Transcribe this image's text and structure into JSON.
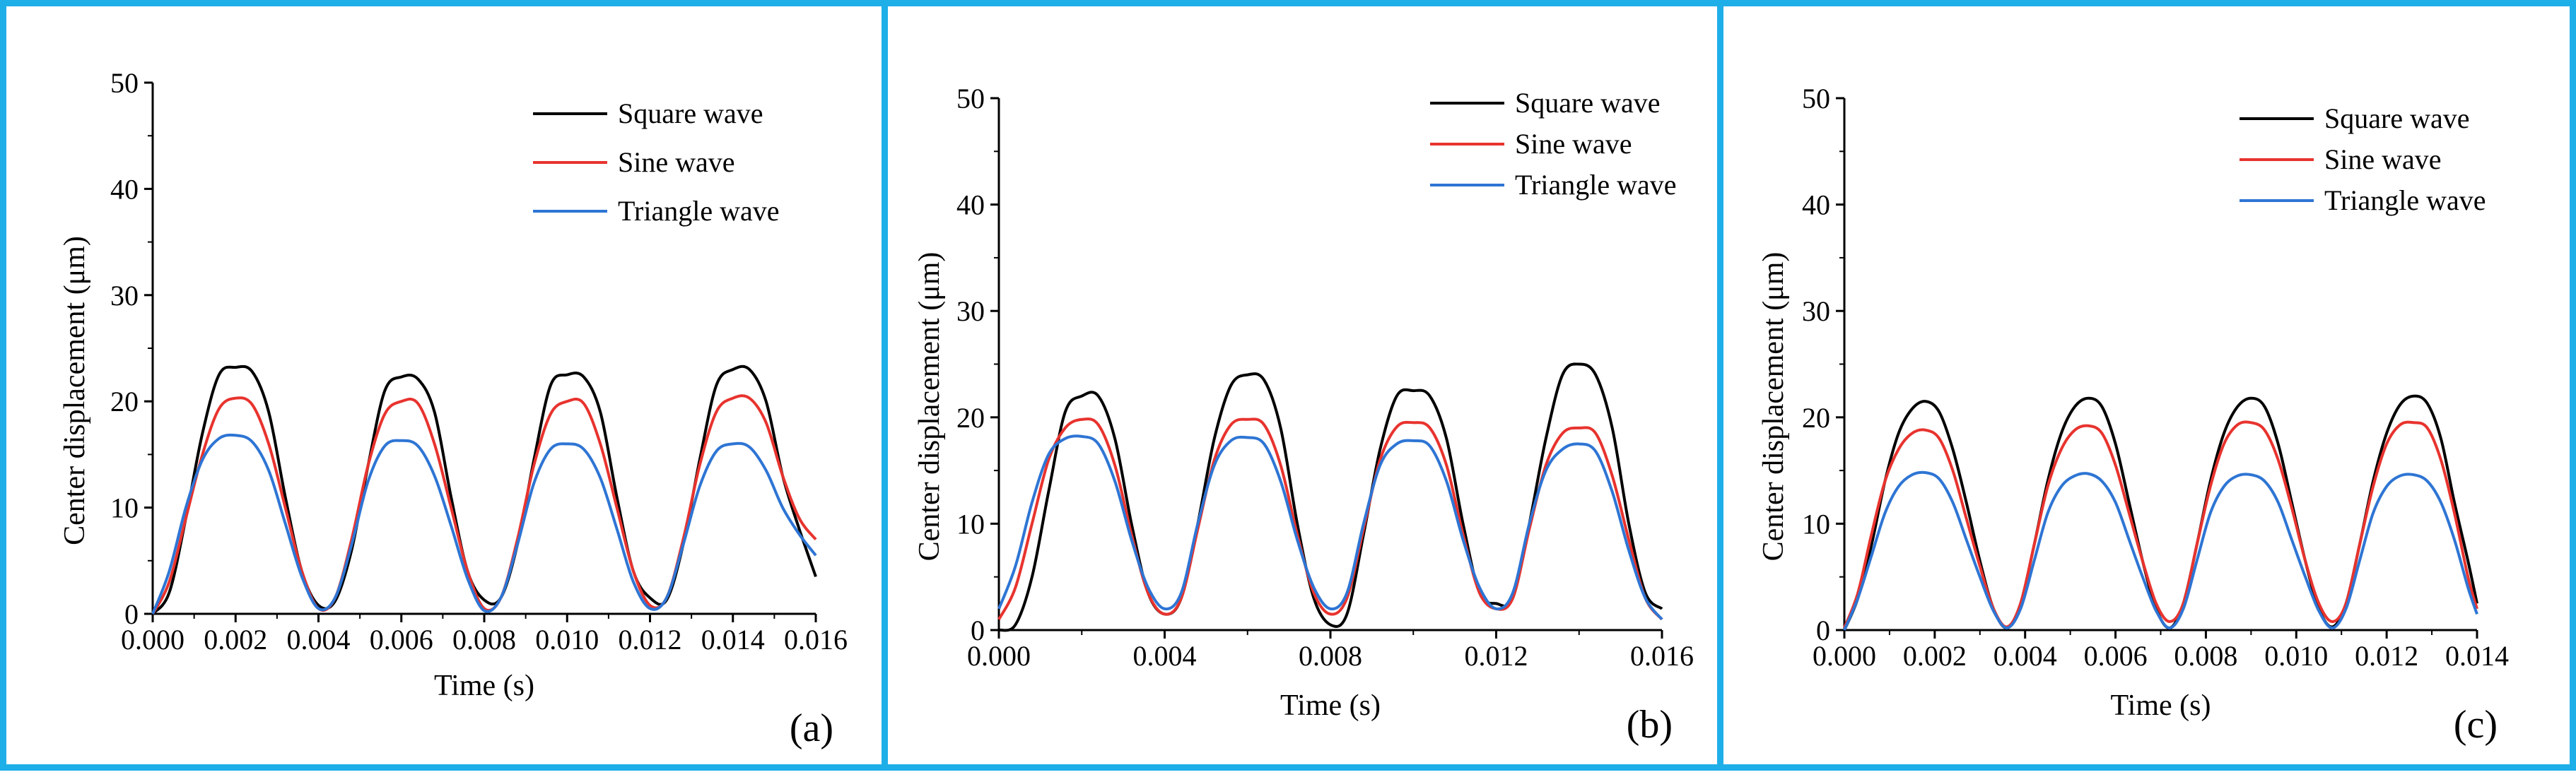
{
  "chart_data": [
    {
      "type": "line",
      "panel_label": "(a)",
      "xlabel": "Time (s)",
      "ylabel": "Center displacement (μm)",
      "xlim": [
        0,
        0.016
      ],
      "ylim": [
        0,
        50
      ],
      "xticks": [
        "0.000",
        "0.002",
        "0.004",
        "0.006",
        "0.008",
        "0.010",
        "0.012",
        "0.014",
        "0.016"
      ],
      "yticks": [
        "0",
        "10",
        "20",
        "30",
        "40",
        "50"
      ],
      "legend_position": "top-right",
      "series": [
        {
          "name": "Square wave",
          "color": "#000000",
          "x": [
            0,
            0.0004,
            0.0008,
            0.0012,
            0.0016,
            0.002,
            0.0024,
            0.0028,
            0.0032,
            0.0036,
            0.004,
            0.0044,
            0.0048,
            0.0052,
            0.0056,
            0.006,
            0.0064,
            0.0068,
            0.0072,
            0.0076,
            0.008,
            0.0084,
            0.0088,
            0.0092,
            0.0096,
            0.01,
            0.0104,
            0.0108,
            0.0112,
            0.0116,
            0.012,
            0.0124,
            0.0128,
            0.0132,
            0.0136,
            0.014,
            0.0144,
            0.0148,
            0.0152,
            0.0156,
            0.016
          ],
          "y": [
            0,
            2,
            9,
            17,
            22.5,
            23.2,
            22.8,
            19,
            11,
            4,
            0.8,
            1.2,
            6,
            14,
            21,
            22.3,
            22.1,
            19,
            11,
            4,
            1.3,
            1.5,
            6.5,
            14.5,
            21.5,
            22.5,
            22.3,
            19,
            11,
            4,
            1.5,
            1.3,
            6.5,
            14.5,
            21.5,
            23,
            23,
            20,
            13,
            8,
            3.5
          ]
        },
        {
          "name": "Sine wave",
          "color": "#e8332e",
          "x": [
            0,
            0.0004,
            0.0008,
            0.0012,
            0.0016,
            0.002,
            0.0024,
            0.0028,
            0.0032,
            0.0036,
            0.004,
            0.0044,
            0.0048,
            0.0052,
            0.0056,
            0.006,
            0.0064,
            0.0068,
            0.0072,
            0.0076,
            0.008,
            0.0084,
            0.0088,
            0.0092,
            0.0096,
            0.01,
            0.0104,
            0.0108,
            0.0112,
            0.0116,
            0.012,
            0.0124,
            0.0128,
            0.0132,
            0.0136,
            0.014,
            0.0144,
            0.0148,
            0.0152,
            0.0156,
            0.016
          ],
          "y": [
            0,
            3,
            9,
            15,
            19.3,
            20.3,
            19.7,
            16,
            10,
            4,
            0.5,
            1.5,
            7,
            14,
            18.8,
            20,
            19.8,
            16,
            10,
            4,
            0.5,
            1.5,
            7,
            14,
            18.8,
            20,
            19.8,
            16,
            10,
            4,
            0.8,
            1.5,
            7,
            14,
            19,
            20.3,
            20.3,
            18,
            13,
            9,
            7
          ]
        },
        {
          "name": "Triangle wave",
          "color": "#2e75d4",
          "x": [
            0,
            0.0004,
            0.0008,
            0.0012,
            0.0016,
            0.002,
            0.0024,
            0.0028,
            0.0032,
            0.0036,
            0.004,
            0.0044,
            0.0048,
            0.0052,
            0.0056,
            0.006,
            0.0064,
            0.0068,
            0.0072,
            0.0076,
            0.008,
            0.0084,
            0.0088,
            0.0092,
            0.0096,
            0.01,
            0.0104,
            0.0108,
            0.0112,
            0.0116,
            0.012,
            0.0124,
            0.0128,
            0.0132,
            0.0136,
            0.014,
            0.0144,
            0.0148,
            0.0152,
            0.0156,
            0.016
          ],
          "y": [
            0,
            4,
            10,
            14.5,
            16.5,
            16.8,
            16.2,
            13.5,
            8.5,
            3.5,
            0.5,
            1.5,
            6.5,
            12.5,
            15.8,
            16.3,
            15.8,
            13,
            8.3,
            3.3,
            0.3,
            1.5,
            6.5,
            12.3,
            15.5,
            16,
            15.5,
            12.8,
            8,
            3,
            0.5,
            1.5,
            6.5,
            12,
            15.3,
            16,
            15.7,
            13.5,
            10,
            7.5,
            5.5
          ]
        }
      ]
    },
    {
      "type": "line",
      "panel_label": "(b)",
      "xlabel": "Time (s)",
      "ylabel": "Center displacement (μm)",
      "xlim": [
        0,
        0.016
      ],
      "ylim": [
        0,
        50
      ],
      "xticks": [
        "0.000",
        "0.004",
        "0.008",
        "0.012",
        "0.016"
      ],
      "yticks": [
        "0",
        "10",
        "20",
        "30",
        "40",
        "50"
      ],
      "legend_position": "top-right",
      "series": [
        {
          "name": "Square wave",
          "color": "#000000",
          "x": [
            0,
            0.0004,
            0.0008,
            0.0012,
            0.0016,
            0.002,
            0.0024,
            0.0028,
            0.0032,
            0.0036,
            0.004,
            0.0044,
            0.0048,
            0.0052,
            0.0056,
            0.006,
            0.0064,
            0.0068,
            0.0072,
            0.0076,
            0.008,
            0.0084,
            0.0088,
            0.0092,
            0.0096,
            0.01,
            0.0104,
            0.0108,
            0.0112,
            0.0116,
            0.012,
            0.0124,
            0.0128,
            0.0132,
            0.0136,
            0.014,
            0.0144,
            0.0148,
            0.0152,
            0.0156,
            0.016
          ],
          "y": [
            0,
            0.5,
            5,
            13,
            20.5,
            22,
            22,
            18,
            10,
            3.5,
            1.5,
            3,
            10,
            18,
            23,
            24,
            23.5,
            19,
            10,
            3,
            0.5,
            1.5,
            9,
            17,
            22,
            22.5,
            22,
            18,
            10,
            3.5,
            2.5,
            3,
            10,
            18,
            24,
            25,
            24,
            19,
            10,
            3.5,
            2
          ]
        },
        {
          "name": "Sine wave",
          "color": "#e8332e",
          "x": [
            0,
            0.0004,
            0.0008,
            0.0012,
            0.0016,
            0.002,
            0.0024,
            0.0028,
            0.0032,
            0.0036,
            0.004,
            0.0044,
            0.0048,
            0.0052,
            0.0056,
            0.006,
            0.0064,
            0.0068,
            0.0072,
            0.0076,
            0.008,
            0.0084,
            0.0088,
            0.0092,
            0.0096,
            0.01,
            0.0104,
            0.0108,
            0.0112,
            0.0116,
            0.012,
            0.0124,
            0.0128,
            0.0132,
            0.0136,
            0.014,
            0.0144,
            0.0148,
            0.0152,
            0.0156,
            0.016
          ],
          "y": [
            1,
            4,
            10,
            16,
            19,
            19.8,
            19.3,
            15.5,
            9,
            3.5,
            1.5,
            3,
            9.5,
            16,
            19.3,
            19.8,
            19.3,
            15.5,
            9,
            3.5,
            1.5,
            3,
            9.5,
            16,
            19.1,
            19.5,
            19,
            15.5,
            9,
            3.5,
            2,
            3,
            9.5,
            15.5,
            18.5,
            19,
            18.5,
            14.5,
            8.5,
            3,
            1
          ]
        },
        {
          "name": "Triangle wave",
          "color": "#2e75d4",
          "x": [
            0,
            0.0004,
            0.0008,
            0.0012,
            0.0016,
            0.002,
            0.0024,
            0.0028,
            0.0032,
            0.0036,
            0.004,
            0.0044,
            0.0048,
            0.0052,
            0.0056,
            0.006,
            0.0064,
            0.0068,
            0.0072,
            0.0076,
            0.008,
            0.0084,
            0.0088,
            0.0092,
            0.0096,
            0.01,
            0.0104,
            0.0108,
            0.0112,
            0.0116,
            0.012,
            0.0124,
            0.0128,
            0.0132,
            0.0136,
            0.014,
            0.0144,
            0.0148,
            0.0152,
            0.0156,
            0.016
          ],
          "y": [
            2,
            6,
            12,
            16.5,
            18,
            18.2,
            17.5,
            14,
            8.5,
            4,
            2,
            3.5,
            10,
            15.5,
            17.8,
            18.1,
            17.5,
            14,
            8.5,
            4,
            2,
            3.5,
            10,
            15.5,
            17.5,
            17.8,
            17.3,
            14,
            8.5,
            4,
            2,
            3.5,
            10,
            15,
            17,
            17.5,
            16.8,
            13,
            7.5,
            3,
            1
          ]
        }
      ]
    },
    {
      "type": "line",
      "panel_label": "(c)",
      "xlabel": "Time (s)",
      "ylabel": "Center displacement (μm)",
      "xlim": [
        0,
        0.014
      ],
      "ylim": [
        0,
        50
      ],
      "xticks": [
        "0.000",
        "0.002",
        "0.004",
        "0.006",
        "0.008",
        "0.010",
        "0.012",
        "0.014"
      ],
      "yticks": [
        "0",
        "10",
        "20",
        "30",
        "40",
        "50"
      ],
      "legend_position": "top-right",
      "series": [
        {
          "name": "Square wave",
          "color": "#000000",
          "x": [
            0,
            0.0003,
            0.0006,
            0.0009,
            0.0012,
            0.0015,
            0.0018,
            0.0021,
            0.0024,
            0.0027,
            0.003,
            0.0033,
            0.0036,
            0.0039,
            0.0042,
            0.0045,
            0.0048,
            0.0051,
            0.0054,
            0.0057,
            0.006,
            0.0063,
            0.0066,
            0.0069,
            0.0072,
            0.0075,
            0.0078,
            0.0081,
            0.0084,
            0.0087,
            0.009,
            0.0093,
            0.0096,
            0.0099,
            0.0102,
            0.0105,
            0.0108,
            0.0111,
            0.0114,
            0.0117,
            0.012,
            0.0123,
            0.0126,
            0.0129,
            0.0132,
            0.0135,
            0.0138,
            0.014
          ],
          "y": [
            0,
            3,
            8,
            14,
            18.5,
            20.8,
            21.5,
            20.5,
            17,
            12,
            6.5,
            2,
            0.2,
            2.5,
            8,
            14,
            18.5,
            21,
            21.8,
            21,
            17.5,
            12,
            6.5,
            2,
            0.2,
            2.5,
            8,
            14,
            18.5,
            21,
            21.8,
            21,
            17.5,
            12,
            6.5,
            2,
            0.3,
            2.5,
            8,
            14,
            18.5,
            21.2,
            22,
            21.3,
            18,
            12,
            6.5,
            2.5
          ]
        },
        {
          "name": "Sine wave",
          "color": "#e8332e",
          "x": [
            0,
            0.0003,
            0.0006,
            0.0009,
            0.0012,
            0.0015,
            0.0018,
            0.0021,
            0.0024,
            0.0027,
            0.003,
            0.0033,
            0.0036,
            0.0039,
            0.0042,
            0.0045,
            0.0048,
            0.0051,
            0.0054,
            0.0057,
            0.006,
            0.0063,
            0.0066,
            0.0069,
            0.0072,
            0.0075,
            0.0078,
            0.0081,
            0.0084,
            0.0087,
            0.009,
            0.0093,
            0.0096,
            0.0099,
            0.0102,
            0.0105,
            0.0108,
            0.0111,
            0.0114,
            0.0117,
            0.012,
            0.0123,
            0.0126,
            0.0129,
            0.0132,
            0.0135,
            0.0138,
            0.014
          ],
          "y": [
            0.2,
            3.5,
            9,
            14,
            17,
            18.5,
            18.8,
            18,
            15,
            10.5,
            6,
            2,
            0.3,
            2.5,
            8,
            13.5,
            17,
            18.8,
            19.2,
            18.5,
            15.5,
            11,
            6.5,
            2.5,
            0.8,
            2.5,
            8,
            13.5,
            17.5,
            19.3,
            19.5,
            18.8,
            16,
            11.5,
            6.5,
            2.5,
            0.8,
            2.5,
            8,
            13.5,
            17.5,
            19.3,
            19.5,
            19,
            16,
            11,
            5,
            2
          ]
        },
        {
          "name": "Triangle wave",
          "color": "#2e75d4",
          "x": [
            0,
            0.0003,
            0.0006,
            0.0009,
            0.0012,
            0.0015,
            0.0018,
            0.0021,
            0.0024,
            0.0027,
            0.003,
            0.0033,
            0.0036,
            0.0039,
            0.0042,
            0.0045,
            0.0048,
            0.0051,
            0.0054,
            0.0057,
            0.006,
            0.0063,
            0.0066,
            0.0069,
            0.0072,
            0.0075,
            0.0078,
            0.0081,
            0.0084,
            0.0087,
            0.009,
            0.0093,
            0.0096,
            0.0099,
            0.0102,
            0.0105,
            0.0108,
            0.0111,
            0.0114,
            0.0117,
            0.012,
            0.0123,
            0.0126,
            0.0129,
            0.0132,
            0.0135,
            0.0138,
            0.014
          ],
          "y": [
            0,
            3,
            7,
            11,
            13.5,
            14.6,
            14.8,
            14.2,
            12,
            8.5,
            5,
            1.8,
            0.2,
            2,
            6.5,
            11,
            13.5,
            14.5,
            14.7,
            14,
            12,
            8.5,
            5,
            1.8,
            0.2,
            2,
            6.5,
            11,
            13.5,
            14.5,
            14.6,
            14,
            12,
            8.5,
            5,
            1.8,
            0.2,
            2,
            6.5,
            11,
            13.5,
            14.5,
            14.6,
            14,
            12,
            8.5,
            4,
            1.5
          ]
        }
      ]
    }
  ]
}
